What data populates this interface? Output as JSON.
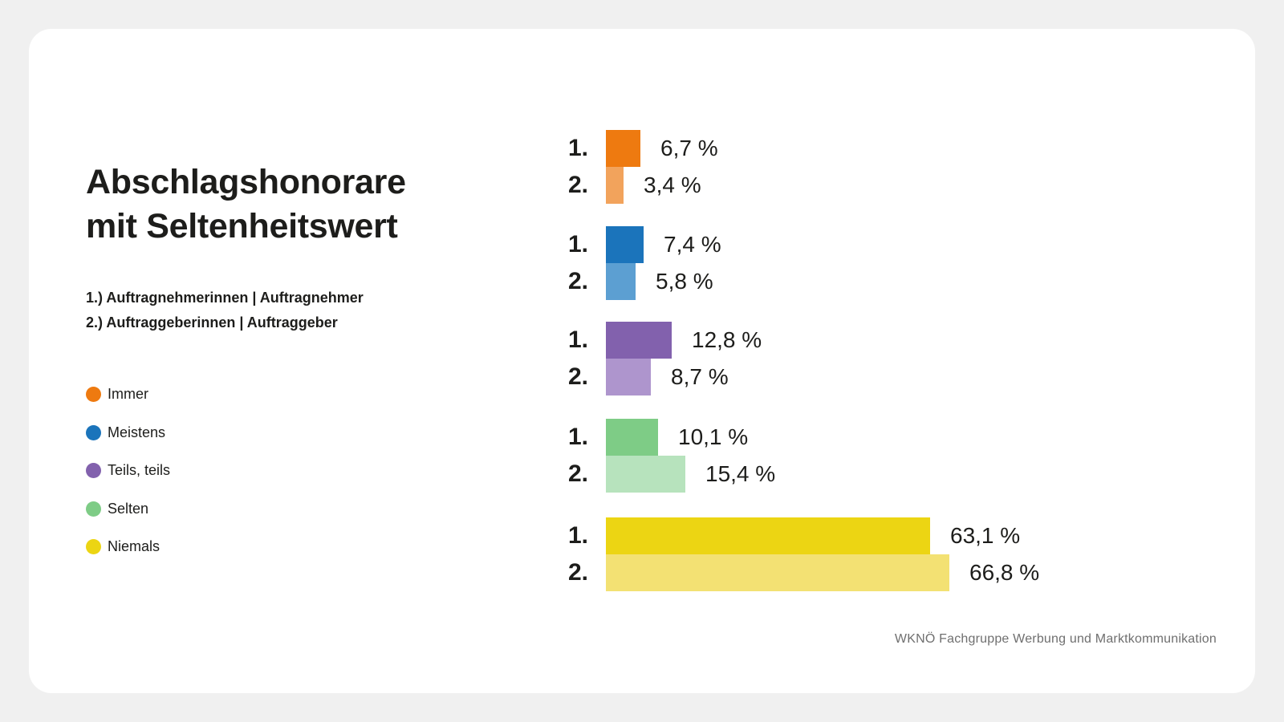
{
  "page": {
    "background_color": "#F0F0F0",
    "card_color": "#FFFFFF"
  },
  "header": {
    "title_line1": "Abschlagshonorare",
    "title_line2": "mit Seltenheitswert",
    "subtitle_lines": [
      "1.) Auftragnehmerinnen | Auftragnehmer",
      "2.) Auftraggeberinnen | Auftraggeber"
    ]
  },
  "legend": {
    "items": [
      {
        "label": "Immer",
        "color": "#EE7A10"
      },
      {
        "label": "Meistens",
        "color": "#1B74BB"
      },
      {
        "label": "Teils, teils",
        "color": "#8261AD"
      },
      {
        "label": "Selten",
        "color": "#7ECC86"
      },
      {
        "label": "Niemals",
        "color": "#ECD513"
      }
    ]
  },
  "chart_data": {
    "type": "bar",
    "orientation": "horizontal",
    "unit": "%",
    "value_axis_range": [
      0,
      100
    ],
    "grid": false,
    "legend_position": "left",
    "row_labels": [
      "1.",
      "2."
    ],
    "categories": [
      "Immer",
      "Meistens",
      "Teils, teils",
      "Selten",
      "Niemals"
    ],
    "groups": [
      {
        "category": "Immer",
        "colors": [
          "#EE7A10",
          "#F2A35C"
        ],
        "values": [
          6.7,
          3.4
        ],
        "display_values": [
          "6,7 %",
          "3,4 %"
        ]
      },
      {
        "category": "Meistens",
        "colors": [
          "#1B74BB",
          "#5C9FD2"
        ],
        "values": [
          7.4,
          5.8
        ],
        "display_values": [
          "7,4 %",
          "5,8 %"
        ]
      },
      {
        "category": "Teils, teils",
        "colors": [
          "#8261AD",
          "#AE95CD"
        ],
        "values": [
          12.8,
          8.7
        ],
        "display_values": [
          "12,8 %",
          "8,7 %"
        ]
      },
      {
        "category": "Selten",
        "colors": [
          "#7ECC86",
          "#B7E3BD"
        ],
        "values": [
          10.1,
          15.4
        ],
        "display_values": [
          "10,1 %",
          "15,4 %"
        ]
      },
      {
        "category": "Niemals",
        "colors": [
          "#ECD513",
          "#F3E173"
        ],
        "values": [
          63.1,
          66.8
        ],
        "display_values": [
          "63,1 %",
          "66,8 %"
        ]
      }
    ]
  },
  "footer": {
    "source": "WKNÖ Fachgruppe Werbung und Marktkommunikation"
  }
}
